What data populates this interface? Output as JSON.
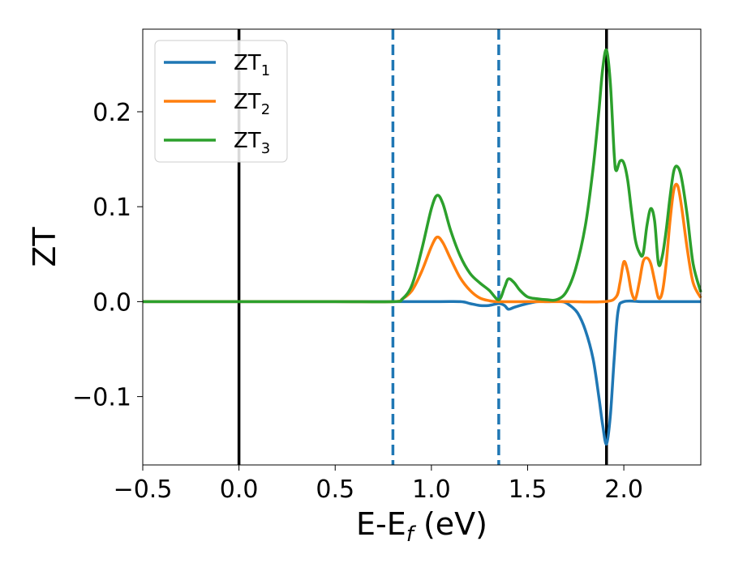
{
  "chart_data": {
    "type": "line",
    "xlabel": "E-E",
    "xlabel_sub": "f",
    "xlabel_unit": " (eV)",
    "ylabel": "ZT",
    "xlim": [
      -0.5,
      2.4
    ],
    "ylim": [
      -0.172,
      0.287
    ],
    "xticks": [
      -0.5,
      0.0,
      0.5,
      1.0,
      1.5,
      2.0
    ],
    "xtick_labels": [
      "−0.5",
      "0.0",
      "0.5",
      "1.0",
      "1.5",
      "2.0"
    ],
    "yticks": [
      -0.1,
      0.0,
      0.1,
      0.2
    ],
    "ytick_labels": [
      "−0.1",
      "0.0",
      "0.1",
      "0.2"
    ],
    "grid": false,
    "legend_position": "top-left",
    "vlines": [
      {
        "x": 0.0,
        "style": "solid",
        "color": "#000000"
      },
      {
        "x": 0.8,
        "style": "dashed",
        "color": "#1f77b4"
      },
      {
        "x": 1.35,
        "style": "dashed",
        "color": "#1f77b4"
      },
      {
        "x": 1.91,
        "style": "solid",
        "color": "#000000"
      }
    ],
    "series": [
      {
        "name": "ZT",
        "sub": "1",
        "color": "#1f77b4",
        "x": [
          -0.5,
          0.0,
          0.5,
          1.0,
          1.15,
          1.2,
          1.25,
          1.3,
          1.35,
          1.38,
          1.4,
          1.43,
          1.48,
          1.55,
          1.6,
          1.68,
          1.72,
          1.76,
          1.8,
          1.84,
          1.87,
          1.89,
          1.91,
          1.93,
          1.95,
          1.97,
          2.0,
          2.1,
          2.2,
          2.3,
          2.4
        ],
        "y": [
          0,
          0,
          0,
          0,
          0,
          -0.002,
          -0.004,
          -0.004,
          -0.002,
          -0.004,
          -0.008,
          -0.006,
          -0.003,
          0,
          0,
          0,
          -0.004,
          -0.012,
          -0.03,
          -0.06,
          -0.1,
          -0.13,
          -0.15,
          -0.12,
          -0.06,
          -0.01,
          0,
          0,
          0,
          0,
          0
        ]
      },
      {
        "name": "ZT",
        "sub": "2",
        "color": "#ff7f0e",
        "x": [
          -0.5,
          0.0,
          0.5,
          0.8,
          0.85,
          0.9,
          0.95,
          1.0,
          1.03,
          1.06,
          1.1,
          1.15,
          1.2,
          1.25,
          1.3,
          1.35,
          1.5,
          1.7,
          1.9,
          1.96,
          1.98,
          2.0,
          2.02,
          2.04,
          2.06,
          2.08,
          2.1,
          2.12,
          2.14,
          2.16,
          2.18,
          2.2,
          2.22,
          2.24,
          2.26,
          2.28,
          2.3,
          2.33,
          2.36,
          2.4
        ],
        "y": [
          0,
          0,
          0,
          0,
          0.003,
          0.012,
          0.032,
          0.058,
          0.068,
          0.062,
          0.045,
          0.025,
          0.012,
          0.004,
          0.001,
          0,
          0,
          0,
          0,
          0.005,
          0.02,
          0.042,
          0.032,
          0.01,
          0.003,
          0.02,
          0.042,
          0.046,
          0.04,
          0.022,
          0.004,
          0.01,
          0.04,
          0.085,
          0.118,
          0.122,
          0.1,
          0.055,
          0.02,
          0.004
        ]
      },
      {
        "name": "ZT",
        "sub": "3",
        "color": "#2ca02c",
        "x": [
          -0.5,
          0.0,
          0.5,
          0.8,
          0.85,
          0.9,
          0.95,
          1.0,
          1.03,
          1.06,
          1.1,
          1.15,
          1.2,
          1.25,
          1.3,
          1.35,
          1.38,
          1.4,
          1.43,
          1.46,
          1.5,
          1.55,
          1.6,
          1.65,
          1.7,
          1.75,
          1.8,
          1.84,
          1.87,
          1.89,
          1.91,
          1.93,
          1.95,
          1.96,
          1.98,
          2.0,
          2.02,
          2.04,
          2.06,
          2.08,
          2.1,
          2.12,
          2.14,
          2.16,
          2.18,
          2.2,
          2.22,
          2.24,
          2.26,
          2.28,
          2.3,
          2.33,
          2.36,
          2.4
        ],
        "y": [
          0,
          0,
          0,
          0,
          0.003,
          0.018,
          0.055,
          0.098,
          0.112,
          0.103,
          0.075,
          0.048,
          0.03,
          0.02,
          0.012,
          0.002,
          0.015,
          0.024,
          0.02,
          0.012,
          0.005,
          0.003,
          0.002,
          0.002,
          0.01,
          0.035,
          0.08,
          0.14,
          0.2,
          0.245,
          0.265,
          0.23,
          0.155,
          0.138,
          0.148,
          0.146,
          0.128,
          0.095,
          0.065,
          0.052,
          0.05,
          0.08,
          0.098,
          0.085,
          0.04,
          0.048,
          0.075,
          0.11,
          0.138,
          0.142,
          0.13,
          0.09,
          0.04,
          0.01
        ]
      }
    ]
  }
}
